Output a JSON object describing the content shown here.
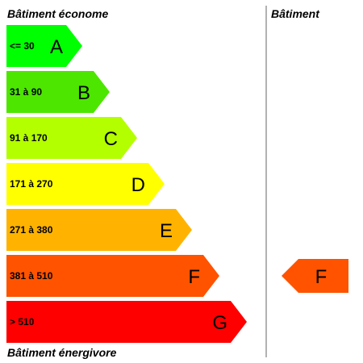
{
  "headings": {
    "top": "Bâtiment économe",
    "bottom": "Bâtiment énergivore",
    "building": "Bâtiment"
  },
  "classes": [
    {
      "letter": "A",
      "range": "<= 30",
      "color": "#00ff00"
    },
    {
      "letter": "B",
      "range": "31 à 90",
      "color": "#4ce600"
    },
    {
      "letter": "C",
      "range": "91 à 170",
      "color": "#b3ff00"
    },
    {
      "letter": "D",
      "range": "171 à 270",
      "color": "#ffff00"
    },
    {
      "letter": "E",
      "range": "271 à 380",
      "color": "#ffb300"
    },
    {
      "letter": "F",
      "range": "381 à 510",
      "color": "#ff5300"
    },
    {
      "letter": "G",
      "range": "> 510",
      "color": "#ff0000"
    }
  ],
  "rating": {
    "letter": "F",
    "color": "#ff5300"
  }
}
